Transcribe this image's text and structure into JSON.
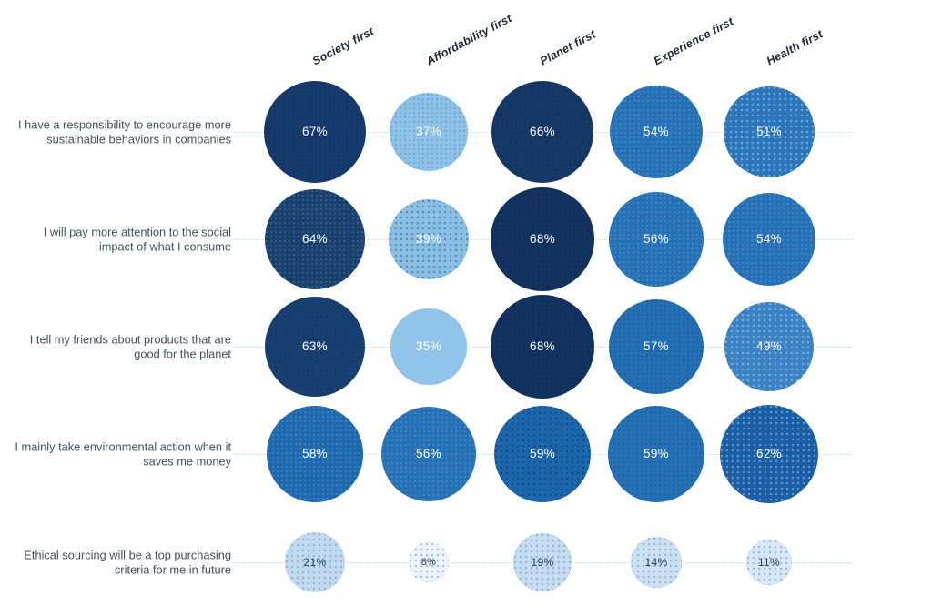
{
  "chart_data": {
    "type": "heatmap",
    "representation": "bubble-matrix",
    "unit": "%",
    "value_range": [
      0,
      100
    ],
    "grid": "dotted-row-leader-lines",
    "legend": "none",
    "columns": [
      "Society first",
      "Affordability first",
      "Planet first",
      "Experience first",
      "Health first"
    ],
    "rows": [
      {
        "label": "I have a responsibility to encourage more sustainable behaviors in companies",
        "values": [
          67,
          37,
          66,
          54,
          51
        ]
      },
      {
        "label": "I will pay more attention to the social impact of what I consume",
        "values": [
          64,
          39,
          68,
          56,
          54
        ]
      },
      {
        "label": "I tell my friends about products that are good for the planet",
        "values": [
          63,
          35,
          68,
          57,
          49
        ]
      },
      {
        "label": "I mainly take environmental action when it saves me money",
        "values": [
          58,
          56,
          59,
          59,
          62
        ]
      },
      {
        "label": "Ethical sourcing will be a top purchasing criteria for me in future",
        "values": [
          21,
          8,
          19,
          14,
          11
        ]
      }
    ],
    "cell_colors": [
      [
        "#173A6C",
        "#8DC3E8",
        "#153866",
        "#2471B6",
        "#2C77BC"
      ],
      [
        "#17406F",
        "#89BFE5",
        "#12335F",
        "#2471B6",
        "#2471B6"
      ],
      [
        "#174070",
        "#90C4E8",
        "#12335F",
        "#226FB3",
        "#3B83C5"
      ],
      [
        "#1D69AF",
        "#2471B6",
        "#1C66AC",
        "#2471B6",
        "#1A5FA6"
      ],
      [
        "#C3D9EE",
        "#ECF3FA",
        "#C7DCF0",
        "#CDE0F2",
        "#D9E8F6"
      ]
    ],
    "cell_textures": [
      [
        "t-d1",
        "t-d1",
        "t-d1",
        "t-w1",
        "t-w2"
      ],
      [
        "t-w1",
        "t-d2",
        "t-d1",
        "t-w1",
        "t-w1"
      ],
      [
        "t-d1",
        "",
        "t-d1",
        "t-d1",
        "t-w2"
      ],
      [
        "t-w1",
        "t-w1",
        "t-d2",
        "t-d1",
        "t-w2"
      ],
      [
        "t-b",
        "t-b",
        "t-b",
        "t-b",
        "t-b"
      ]
    ],
    "row_value_label_colors": [
      "#ffffff",
      "#ffffff",
      "#ffffff",
      "#ffffff",
      "#1E3555"
    ],
    "palette_note": {
      "dark_navy": "#12335F",
      "medium_blue": "#2471B6",
      "light_blue": "#8DC3E8",
      "pale_blue": "#C7DCF0",
      "header_text": "#1c2836",
      "row_label_text": "#47505c",
      "leader_line": "#d9dee4"
    }
  }
}
